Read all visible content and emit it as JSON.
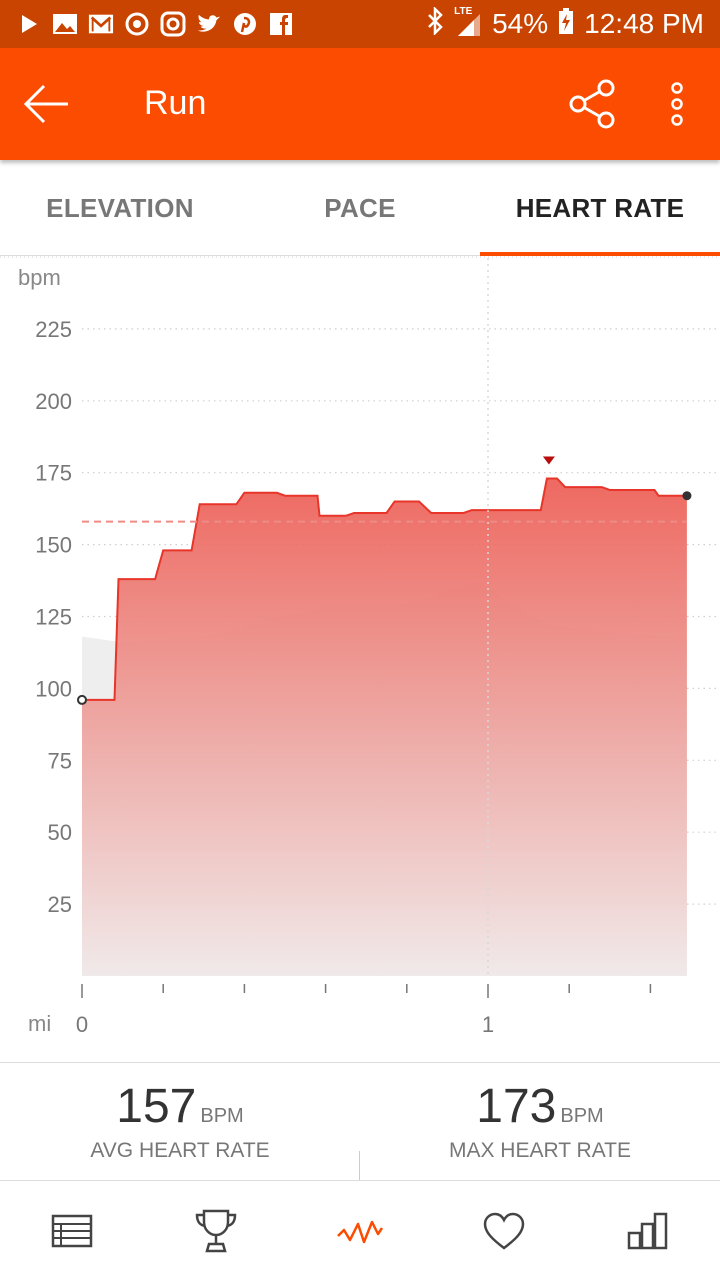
{
  "status_bar": {
    "battery": "54%",
    "time": "12:48 PM",
    "network": "LTE",
    "icons": [
      "play-store-icon",
      "gallery-icon",
      "gmail-icon",
      "sync-icon",
      "instagram-icon",
      "twitter-icon",
      "pinterest-icon",
      "facebook-icon",
      "bluetooth-icon",
      "signal-icon",
      "battery-charging-icon"
    ]
  },
  "app_bar": {
    "title": "Run",
    "back_icon": "arrow-left-icon",
    "share_icon": "share-icon",
    "more_icon": "more-vert-icon"
  },
  "tabs": [
    {
      "label": "ELEVATION",
      "active": false
    },
    {
      "label": "PACE",
      "active": false
    },
    {
      "label": "HEART RATE",
      "active": true
    }
  ],
  "chart_data": {
    "type": "area",
    "ylabel": "bpm",
    "xlabel": "mi",
    "ylim": [
      0,
      240
    ],
    "xlim": [
      0,
      1.5
    ],
    "yticks": [
      25,
      50,
      75,
      100,
      125,
      150,
      175,
      200,
      225
    ],
    "xticks": [
      {
        "value": 0,
        "label": "0"
      },
      {
        "value": 1,
        "label": "1"
      }
    ],
    "x_minor_ticks": [
      0,
      0.2,
      0.4,
      0.6,
      0.8,
      1.0,
      1.2,
      1.4
    ],
    "grid": true,
    "average_line": 158,
    "max_marker": {
      "x": 1.15,
      "y": 173
    },
    "series": [
      {
        "values": [
          [
            0.0,
            96
          ],
          [
            0.08,
            96
          ],
          [
            0.09,
            138
          ],
          [
            0.18,
            138
          ],
          [
            0.2,
            148
          ],
          [
            0.27,
            148
          ],
          [
            0.29,
            164
          ],
          [
            0.38,
            164
          ],
          [
            0.4,
            168
          ],
          [
            0.48,
            168
          ],
          [
            0.5,
            167
          ],
          [
            0.58,
            167
          ],
          [
            0.585,
            160
          ],
          [
            0.65,
            160
          ],
          [
            0.67,
            161
          ],
          [
            0.75,
            161
          ],
          [
            0.77,
            165
          ],
          [
            0.83,
            165
          ],
          [
            0.86,
            161
          ],
          [
            0.94,
            161
          ],
          [
            0.96,
            162
          ],
          [
            1.13,
            162
          ],
          [
            1.145,
            173
          ],
          [
            1.17,
            173
          ],
          [
            1.19,
            170
          ],
          [
            1.28,
            170
          ],
          [
            1.3,
            169
          ],
          [
            1.41,
            169
          ],
          [
            1.42,
            167
          ],
          [
            1.49,
            167
          ]
        ]
      }
    ],
    "elevation_background": [
      [
        0.0,
        118
      ],
      [
        0.1,
        116
      ],
      [
        0.2,
        117
      ],
      [
        0.3,
        118
      ],
      [
        0.38,
        120
      ],
      [
        0.45,
        124
      ],
      [
        0.52,
        126
      ],
      [
        0.6,
        128
      ],
      [
        0.7,
        128
      ],
      [
        0.78,
        129
      ],
      [
        0.84,
        131
      ],
      [
        0.9,
        134
      ],
      [
        0.98,
        137
      ],
      [
        1.02,
        133
      ],
      [
        1.08,
        127
      ],
      [
        1.15,
        122
      ],
      [
        1.25,
        120
      ],
      [
        1.35,
        119
      ],
      [
        1.45,
        118
      ],
      [
        1.49,
        117
      ]
    ],
    "colors": {
      "line": "#e8352a",
      "fill_top": "#ec5c53",
      "fill_bottom": "#f0e9e9",
      "average_line": "#f08a85",
      "elevation": "#eeeeee",
      "max_marker": "#b80e0e"
    }
  },
  "stats": [
    {
      "value": "157",
      "unit": "BPM",
      "label": "AVG HEART RATE"
    },
    {
      "value": "173",
      "unit": "BPM",
      "label": "MAX HEART RATE"
    }
  ],
  "bottom_nav": [
    {
      "icon": "list-icon",
      "active": false
    },
    {
      "icon": "trophy-icon",
      "active": false
    },
    {
      "icon": "analysis-icon",
      "active": true
    },
    {
      "icon": "heart-icon",
      "active": false
    },
    {
      "icon": "bar-chart-icon",
      "active": false
    }
  ],
  "colors": {
    "status_bar": "#c94400",
    "app_bar": "#fc4c02",
    "accent": "#fc4c02"
  }
}
